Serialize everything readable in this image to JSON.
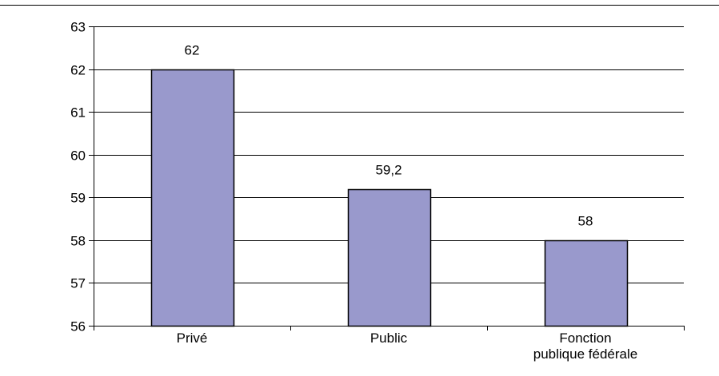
{
  "chart_data": {
    "type": "bar",
    "categories": [
      "Privé",
      "Public",
      "Fonction publique fédérale"
    ],
    "category_label_lines": [
      [
        "Privé"
      ],
      [
        "Public"
      ],
      [
        "Fonction",
        "publique fédérale"
      ]
    ],
    "values": [
      62,
      59.2,
      58
    ],
    "value_labels": [
      "62",
      "59,2",
      "58"
    ],
    "yticks": [
      "56",
      "57",
      "58",
      "59",
      "60",
      "61",
      "62",
      "63"
    ],
    "ylim": [
      56,
      63
    ],
    "title": "",
    "xlabel": "",
    "ylabel": "",
    "grid": "horizontal",
    "legend": "none"
  },
  "colors": {
    "bar_fill": "#9999cc",
    "bar_stroke": "#000000",
    "grid": "#000000",
    "axis": "#000000",
    "top_rule": "#000000"
  }
}
